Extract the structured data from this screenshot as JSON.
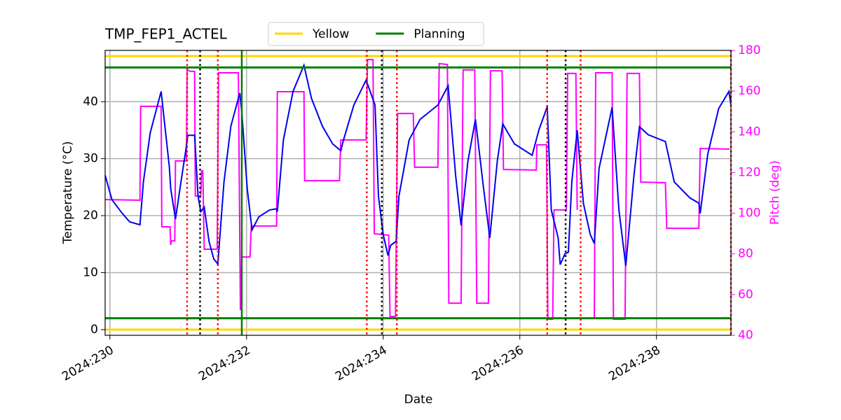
{
  "chart_data": {
    "type": "line",
    "title": "TMP_FEP1_ACTEL",
    "xlabel": "Date",
    "ylabel": "Temperature (°C)",
    "y2label": "Pitch (deg)",
    "y2color": "#ff00ff",
    "grid": true,
    "xlim": [
      229.93,
      239.09
    ],
    "xticks": [
      {
        "value": 230,
        "label": "2024:230"
      },
      {
        "value": 232,
        "label": "2024:232"
      },
      {
        "value": 234,
        "label": "2024:234"
      },
      {
        "value": 236,
        "label": "2024:236"
      },
      {
        "value": 238,
        "label": "2024:238"
      }
    ],
    "ylim": [
      -1,
      49
    ],
    "yticks": [
      0,
      10,
      20,
      30,
      40
    ],
    "y2lim": [
      40,
      180
    ],
    "y2ticks": [
      40,
      60,
      80,
      100,
      120,
      140,
      160,
      180
    ],
    "hlines": [
      {
        "name": "Yellow",
        "color": "#ffd700",
        "values": [
          48,
          0
        ]
      },
      {
        "name": "Planning",
        "color": "#008000",
        "values": [
          46,
          2
        ]
      }
    ],
    "vlines": [
      {
        "color": "#ff0000",
        "style": "dotted",
        "values": [
          231.13,
          231.58,
          233.76,
          234.2,
          236.4,
          236.89,
          239.09
        ]
      },
      {
        "color": "#000000",
        "style": "dotted",
        "values": [
          231.32,
          233.98,
          236.67
        ]
      },
      {
        "color": "#008000",
        "style": "solid",
        "values": [
          231.93
        ]
      }
    ],
    "series": [
      {
        "color": "#ff00ff",
        "axis": "y2",
        "x": [
          229.93,
          230.44,
          230.45,
          230.75,
          230.76,
          230.88,
          230.89,
          230.9,
          230.95,
          230.96,
          231.12,
          231.13,
          231.18,
          231.24,
          231.25,
          231.33,
          231.34,
          231.36,
          231.38,
          231.57,
          231.59,
          231.88,
          231.91,
          231.93,
          232.05,
          232.07,
          232.44,
          232.45,
          232.84,
          232.85,
          233.36,
          233.38,
          233.75,
          233.77,
          233.85,
          233.87,
          234.08,
          234.1,
          234.18,
          234.21,
          234.44,
          234.46,
          234.8,
          234.82,
          234.94,
          234.96,
          235.14,
          235.17,
          235.34,
          235.37,
          235.54,
          235.57,
          235.74,
          235.76,
          236.24,
          236.25,
          236.39,
          236.41,
          236.48,
          236.5,
          236.68,
          236.7,
          236.82,
          236.84,
          236.86,
          237.09,
          237.11,
          237.35,
          237.37,
          237.54,
          237.57,
          237.75,
          237.77,
          238.13,
          238.15,
          238.62,
          238.64,
          239.07
        ],
        "values": [
          106.7,
          106.4,
          152.5,
          152.5,
          93.3,
          93.3,
          84.4,
          86.4,
          86.4,
          125.7,
          125.7,
          170.4,
          169.7,
          169.7,
          108.5,
          108.5,
          120.8,
          120.8,
          82.3,
          82.3,
          169.0,
          169.0,
          52.4,
          78.5,
          78.5,
          93.7,
          93.7,
          159.7,
          159.7,
          116.0,
          116.0,
          136.0,
          136.0,
          175.5,
          175.5,
          89.9,
          89.2,
          49.3,
          49.3,
          149.0,
          149.0,
          122.6,
          122.6,
          173.5,
          173.1,
          55.8,
          55.8,
          170.4,
          170.4,
          55.8,
          55.8,
          170.0,
          170.0,
          121.5,
          121.2,
          133.6,
          133.6,
          47.9,
          47.9,
          101.6,
          101.6,
          168.7,
          168.7,
          101.6,
          null,
          48.3,
          169.0,
          169.0,
          47.9,
          47.9,
          168.7,
          168.7,
          115.3,
          115.0,
          92.6,
          92.6,
          131.8,
          131.5
        ]
      },
      {
        "color": "#0000ee",
        "axis": "y",
        "x": [
          229.93,
          230.03,
          230.18,
          230.29,
          230.44,
          230.49,
          230.59,
          230.75,
          230.87,
          230.89,
          230.96,
          231.04,
          231.11,
          231.14,
          231.24,
          231.29,
          231.33,
          231.38,
          231.45,
          231.52,
          231.58,
          231.6,
          231.67,
          231.77,
          231.9,
          231.93,
          232.01,
          232.08,
          232.18,
          232.34,
          232.44,
          232.45,
          232.54,
          232.68,
          232.84,
          232.95,
          233.11,
          233.26,
          233.38,
          233.42,
          233.57,
          233.75,
          233.88,
          233.93,
          234.0,
          234.07,
          234.11,
          234.19,
          234.23,
          234.38,
          234.54,
          234.8,
          234.95,
          235.06,
          235.14,
          235.24,
          235.35,
          235.47,
          235.56,
          235.67,
          235.75,
          235.92,
          236.18,
          236.28,
          236.4,
          236.46,
          236.56,
          236.59,
          236.66,
          236.71,
          236.76,
          236.84,
          236.93,
          237.03,
          237.09,
          237.16,
          237.27,
          237.35,
          237.45,
          237.55,
          237.67,
          237.75,
          237.88,
          238.13,
          238.26,
          238.49,
          238.62,
          238.64,
          238.75,
          238.91,
          239.06,
          239.09
        ],
        "values": [
          27.1,
          22.8,
          20.4,
          18.9,
          18.4,
          25.9,
          34.5,
          41.8,
          28.6,
          24.7,
          19.4,
          25.9,
          31.4,
          34.1,
          34.1,
          23.4,
          20.7,
          21.5,
          15.5,
          12.4,
          11.5,
          14.8,
          25.9,
          35.7,
          41.5,
          38.2,
          24.7,
          17.5,
          19.8,
          21.0,
          21.2,
          20.7,
          33.3,
          41.8,
          46.4,
          40.6,
          35.7,
          32.6,
          31.4,
          33.3,
          39.4,
          43.8,
          39.4,
          23.4,
          16.7,
          13.0,
          14.8,
          15.5,
          23.4,
          33.3,
          36.9,
          39.4,
          42.8,
          27.1,
          18.3,
          29.6,
          36.9,
          24.7,
          16.1,
          29.6,
          36.1,
          32.6,
          30.6,
          35.1,
          39.1,
          21.0,
          16.1,
          11.4,
          13.3,
          13.6,
          25.9,
          35.0,
          22.2,
          16.7,
          15.1,
          28.3,
          34.5,
          39.0,
          21.0,
          11.2,
          27.1,
          35.6,
          34.2,
          33.0,
          25.9,
          23.1,
          22.2,
          20.4,
          30.8,
          38.8,
          41.8,
          39.4
        ]
      }
    ]
  }
}
